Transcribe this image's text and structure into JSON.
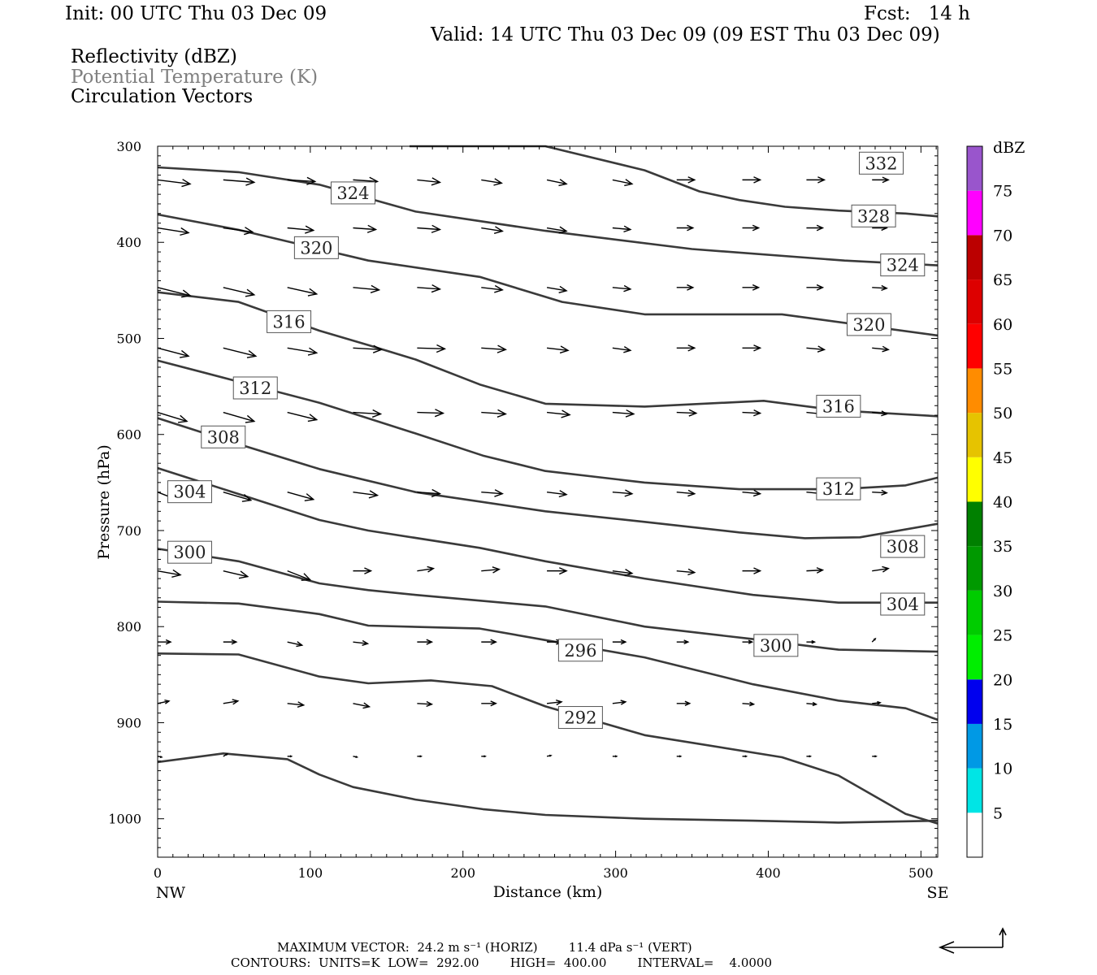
{
  "header": {
    "init": "Init: 00 UTC Thu 03 Dec 09",
    "fcst": "Fcst:   14 h",
    "valid": "Valid: 14 UTC Thu 03 Dec 09 (09 EST Thu 03 Dec 09)",
    "fields": [
      "Reflectivity (dBZ)",
      "Potential Temperature (K)",
      "Circulation Vectors"
    ]
  },
  "footer": {
    "max_vector": "MAXIMUM VECTOR:  24.2 m s⁻¹ (HORIZ)        11.4 dPa s⁻¹ (VERT)",
    "contours": "CONTOURS:  UNITS=K  LOW=  292.00        HIGH=  400.00        INTERVAL=    4.0000"
  },
  "colors": {
    "contour": "#3a3a3a",
    "vector": "#000000",
    "dbz_bins": [
      "#ffffff",
      "#00e5e5",
      "#0099e5",
      "#0000ee",
      "#00ee00",
      "#00cc00",
      "#009900",
      "#008000",
      "#ffff00",
      "#e6c300",
      "#ff8c00",
      "#ff0000",
      "#dd0000",
      "#bb0000",
      "#ff00ff",
      "#9955cc",
      "#ffffff"
    ]
  },
  "chart_data": {
    "type": "cross-section",
    "xlabel": "Distance (km)",
    "ylabel": "Pressure (hPa)",
    "xlim": [
      0,
      511
    ],
    "ylim": [
      1040,
      300
    ],
    "xticks": [
      0,
      100,
      200,
      300,
      400,
      500
    ],
    "yticks": [
      300,
      400,
      500,
      600,
      700,
      800,
      900,
      1000
    ],
    "x_end_labels": {
      "left": "NW",
      "right": "SE"
    },
    "colorbar": {
      "title": "dBZ",
      "ticks": [
        5,
        10,
        15,
        20,
        25,
        30,
        35,
        40,
        45,
        50,
        55,
        60,
        65,
        70,
        75
      ],
      "range": [
        0,
        80
      ]
    },
    "contour_labels": [
      {
        "text": "332",
        "x": 474,
        "p": 318
      },
      {
        "text": "324",
        "x": 128,
        "p": 349
      },
      {
        "text": "328",
        "x": 469,
        "p": 373
      },
      {
        "text": "320",
        "x": 104,
        "p": 406
      },
      {
        "text": "324",
        "x": 488,
        "p": 424
      },
      {
        "text": "316",
        "x": 86,
        "p": 483
      },
      {
        "text": "320",
        "x": 466,
        "p": 486
      },
      {
        "text": "312",
        "x": 64,
        "p": 552
      },
      {
        "text": "316",
        "x": 446,
        "p": 571
      },
      {
        "text": "308",
        "x": 43,
        "p": 603
      },
      {
        "text": "304",
        "x": 21,
        "p": 660
      },
      {
        "text": "312",
        "x": 446,
        "p": 657
      },
      {
        "text": "308",
        "x": 488,
        "p": 717
      },
      {
        "text": "300",
        "x": 21,
        "p": 723
      },
      {
        "text": "304",
        "x": 488,
        "p": 777
      },
      {
        "text": "300",
        "x": 405,
        "p": 820
      },
      {
        "text": "296",
        "x": 277,
        "p": 825
      },
      {
        "text": "292",
        "x": 277,
        "p": 895
      }
    ],
    "isentropes": [
      [
        [
          165,
          300
        ],
        [
          254,
          300
        ],
        [
          319,
          325
        ],
        [
          355,
          347
        ],
        [
          381,
          356
        ],
        [
          411,
          363
        ],
        [
          446,
          367
        ],
        [
          490,
          370
        ],
        [
          511,
          373
        ]
      ],
      [
        [
          0,
          322
        ],
        [
          53,
          327
        ],
        [
          106,
          340
        ],
        [
          169,
          368
        ],
        [
          254,
          388
        ],
        [
          350,
          407
        ],
        [
          450,
          419
        ],
        [
          511,
          424
        ]
      ],
      [
        [
          0,
          371
        ],
        [
          53,
          387
        ],
        [
          138,
          419
        ],
        [
          211,
          436
        ],
        [
          265,
          462
        ],
        [
          319,
          475
        ],
        [
          409,
          475
        ],
        [
          511,
          497
        ]
      ],
      [
        [
          0,
          452
        ],
        [
          53,
          462
        ],
        [
          106,
          492
        ],
        [
          138,
          507
        ],
        [
          169,
          522
        ],
        [
          211,
          548
        ],
        [
          254,
          568
        ],
        [
          319,
          571
        ],
        [
          397,
          565
        ],
        [
          446,
          575
        ],
        [
          511,
          581
        ]
      ],
      [
        [
          0,
          523
        ],
        [
          53,
          545
        ],
        [
          106,
          567
        ],
        [
          169,
          599
        ],
        [
          213,
          622
        ],
        [
          254,
          638
        ],
        [
          319,
          650
        ],
        [
          381,
          657
        ],
        [
          446,
          657
        ],
        [
          490,
          653
        ],
        [
          511,
          645
        ]
      ],
      [
        [
          0,
          583
        ],
        [
          53,
          610
        ],
        [
          106,
          636
        ],
        [
          169,
          660
        ],
        [
          254,
          680
        ],
        [
          319,
          691
        ],
        [
          381,
          702
        ],
        [
          424,
          708
        ],
        [
          460,
          707
        ],
        [
          511,
          693
        ]
      ],
      [
        [
          0,
          635
        ],
        [
          53,
          662
        ],
        [
          106,
          689
        ],
        [
          138,
          700
        ],
        [
          211,
          718
        ],
        [
          254,
          732
        ],
        [
          319,
          750
        ],
        [
          390,
          767
        ],
        [
          446,
          775
        ],
        [
          511,
          775
        ]
      ],
      [
        [
          0,
          719
        ],
        [
          53,
          732
        ],
        [
          106,
          755
        ],
        [
          138,
          762
        ],
        [
          169,
          767
        ],
        [
          254,
          779
        ],
        [
          319,
          800
        ],
        [
          390,
          813
        ],
        [
          446,
          824
        ],
        [
          511,
          826
        ]
      ],
      [
        [
          0,
          774
        ],
        [
          53,
          776
        ],
        [
          106,
          787
        ],
        [
          138,
          799
        ],
        [
          211,
          802
        ],
        [
          254,
          814
        ],
        [
          319,
          832
        ],
        [
          390,
          860
        ],
        [
          446,
          877
        ],
        [
          490,
          885
        ],
        [
          511,
          897
        ]
      ],
      [
        [
          0,
          828
        ],
        [
          53,
          829
        ],
        [
          106,
          852
        ],
        [
          138,
          859
        ],
        [
          179,
          856
        ],
        [
          219,
          862
        ],
        [
          254,
          883
        ],
        [
          319,
          913
        ],
        [
          409,
          936
        ],
        [
          446,
          955
        ],
        [
          490,
          995
        ],
        [
          511,
          1005
        ]
      ],
      [
        [
          0,
          941
        ],
        [
          43,
          932
        ],
        [
          85,
          938
        ],
        [
          106,
          954
        ],
        [
          128,
          967
        ],
        [
          169,
          980
        ],
        [
          213,
          990
        ],
        [
          254,
          996
        ],
        [
          319,
          1000
        ],
        [
          390,
          1002
        ],
        [
          446,
          1004
        ],
        [
          511,
          1002
        ]
      ]
    ],
    "vectors": [
      {
        "p": 335,
        "x": [
          0,
          43,
          85,
          128,
          170,
          212,
          255,
          298,
          340,
          383,
          425,
          468
        ],
        "u": [
          40,
          38,
          34,
          30,
          28,
          25,
          24,
          24,
          22,
          22,
          22,
          20
        ],
        "w": [
          5,
          3,
          2,
          2,
          3,
          4,
          5,
          5,
          0,
          0,
          0,
          0
        ]
      },
      {
        "p": 385,
        "x": [
          0,
          43,
          85,
          128,
          170,
          212,
          255,
          298,
          340,
          383,
          425,
          468
        ],
        "u": [
          38,
          36,
          32,
          28,
          28,
          26,
          24,
          22,
          20,
          20,
          20,
          18
        ],
        "w": [
          6,
          5,
          3,
          2,
          2,
          4,
          4,
          2,
          0,
          0,
          0,
          0
        ]
      },
      {
        "p": 447,
        "x": [
          0,
          43,
          85,
          128,
          170,
          212,
          255,
          298,
          340,
          383,
          425,
          468
        ],
        "u": [
          40,
          38,
          36,
          32,
          28,
          26,
          24,
          22,
          20,
          20,
          20,
          18
        ],
        "w": [
          10,
          9,
          8,
          3,
          2,
          3,
          4,
          2,
          0,
          0,
          0,
          1
        ]
      },
      {
        "p": 510,
        "x": [
          0,
          43,
          85,
          128,
          170,
          212,
          255,
          298,
          340,
          383,
          425,
          468
        ],
        "u": [
          38,
          40,
          36,
          35,
          34,
          30,
          26,
          22,
          22,
          22,
          22,
          20
        ],
        "w": [
          10,
          10,
          6,
          2,
          1,
          2,
          3,
          3,
          0,
          0,
          2,
          2
        ]
      },
      {
        "p": 577,
        "x": [
          0,
          43,
          85,
          128,
          170,
          212,
          255,
          298,
          340,
          383,
          425,
          468
        ],
        "u": [
          36,
          38,
          36,
          34,
          32,
          30,
          28,
          26,
          24,
          22,
          20,
          18
        ],
        "w": [
          11,
          11,
          9,
          2,
          1,
          2,
          3,
          2,
          1,
          1,
          2,
          2
        ]
      },
      {
        "p": 660,
        "x": [
          0,
          43,
          85,
          128,
          170,
          212,
          255,
          298,
          340,
          383,
          425,
          468
        ],
        "u": [
          28,
          34,
          32,
          30,
          28,
          26,
          24,
          24,
          22,
          22,
          20,
          18
        ],
        "w": [
          11,
          10,
          9,
          4,
          2,
          2,
          3,
          2,
          2,
          2,
          2,
          1
        ]
      },
      {
        "p": 742,
        "x": [
          0,
          43,
          85,
          128,
          170,
          212,
          255,
          298,
          340,
          383,
          425,
          468
        ],
        "u": [
          28,
          30,
          28,
          22,
          20,
          22,
          24,
          24,
          22,
          22,
          20,
          20
        ],
        "w": [
          5,
          7,
          11,
          0,
          -3,
          -2,
          0,
          3,
          2,
          0,
          -1,
          -3
        ]
      },
      {
        "p": 816,
        "x": [
          0,
          43,
          85,
          128,
          170,
          212,
          255,
          298,
          340,
          383,
          425,
          468
        ],
        "u": [
          16,
          16,
          18,
          18,
          18,
          18,
          18,
          16,
          14,
          12,
          10,
          4
        ],
        "w": [
          0,
          0,
          4,
          2,
          0,
          0,
          0,
          0,
          0,
          0,
          0,
          -4
        ]
      },
      {
        "p": 880,
        "x": [
          0,
          43,
          85,
          128,
          170,
          212,
          255,
          298,
          340,
          383,
          425,
          468
        ],
        "u": [
          14,
          18,
          20,
          20,
          18,
          18,
          18,
          16,
          16,
          14,
          12,
          10
        ],
        "w": [
          -3,
          -3,
          2,
          4,
          1,
          0,
          -2,
          -2,
          0,
          1,
          1,
          -1
        ]
      },
      {
        "p": 935,
        "x": [
          0,
          43,
          85,
          128,
          170,
          212,
          255,
          298,
          340,
          383,
          425,
          468
        ],
        "u": [
          5,
          5,
          5,
          5,
          5,
          5,
          5,
          5,
          5,
          5,
          5,
          5
        ],
        "w": [
          1,
          -3,
          0,
          1,
          0,
          0,
          -1,
          0,
          0,
          0,
          0,
          0
        ]
      }
    ]
  }
}
